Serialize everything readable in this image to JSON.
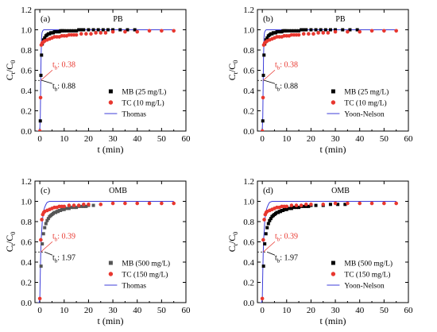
{
  "chart_data": [
    {
      "type": "scatter",
      "panel_label": "(a)",
      "title": "PB",
      "xlabel": "t (min)",
      "ylabel_main": "C",
      "ylabel_sub1": "t",
      "ylabel_mid": "/C",
      "ylabel_sub2": "0",
      "xlim": [
        -2,
        60
      ],
      "ylim": [
        0,
        1.2
      ],
      "xticks": [
        0,
        10,
        20,
        30,
        40,
        50,
        60
      ],
      "yticks": [
        0.0,
        0.2,
        0.4,
        0.6,
        0.8,
        1.0,
        1.2
      ],
      "series": [
        {
          "name": "MB (25 mg/L)",
          "marker": "square",
          "color": "#000000",
          "x": [
            0.2,
            0.45,
            0.7,
            1,
            1.5,
            2,
            2.5,
            3,
            3.5,
            4,
            4.5,
            5,
            5.5,
            6,
            6.5,
            7,
            7.5,
            8,
            8.5,
            9,
            9.5,
            10,
            11,
            12,
            13,
            14,
            15,
            16,
            17,
            18,
            20,
            22,
            24,
            26,
            28,
            30,
            33,
            36,
            39
          ],
          "y": [
            0.1,
            0.55,
            0.75,
            0.86,
            0.9,
            0.92,
            0.94,
            0.95,
            0.96,
            0.96,
            0.97,
            0.97,
            0.97,
            0.98,
            0.98,
            0.98,
            0.98,
            0.98,
            0.99,
            0.99,
            0.99,
            0.99,
            0.99,
            0.99,
            0.99,
            0.99,
            0.99,
            1.0,
            1.0,
            1.0,
            1.0,
            1.0,
            1.0,
            1.0,
            1.0,
            1.0,
            1.0,
            1.0,
            1.0
          ]
        },
        {
          "name": "TC (10 mg/L)",
          "marker": "circle",
          "color": "#e8372f",
          "x": [
            0,
            0.3,
            0.6,
            1,
            1.5,
            2,
            3,
            4,
            5,
            6,
            7,
            8,
            9,
            10,
            11,
            12,
            13,
            14,
            15,
            17,
            19,
            21,
            23,
            25,
            27,
            30,
            35,
            40,
            45,
            50,
            55
          ],
          "y": [
            0.0,
            0.33,
            0.85,
            0.87,
            0.88,
            0.89,
            0.9,
            0.91,
            0.92,
            0.93,
            0.93,
            0.93,
            0.94,
            0.94,
            0.94,
            0.95,
            0.95,
            0.95,
            0.95,
            0.96,
            0.96,
            0.96,
            0.97,
            0.97,
            0.97,
            0.98,
            0.98,
            0.98,
            0.99,
            0.99,
            0.99
          ]
        },
        {
          "name": "Thomas",
          "kind": "line",
          "color": "#3d3dd9",
          "x": [
            -1,
            -0.3,
            0,
            0.2,
            0.38,
            0.5,
            0.7,
            0.88,
            1.2,
            1.6,
            2.2,
            3,
            4,
            6,
            10,
            20,
            40,
            55
          ],
          "y": [
            0.0,
            0.0,
            0.02,
            0.15,
            0.5,
            0.72,
            0.92,
            0.97,
            0.99,
            1.0,
            1.0,
            1.0,
            1.0,
            1.0,
            1.0,
            1.0,
            1.0,
            1.0
          ]
        }
      ],
      "annotations": [
        {
          "label_main": "t",
          "label_sub": "b",
          "value": ": 0.38",
          "color": "#e8372f"
        },
        {
          "label_main": "t",
          "label_sub": "b",
          "value": ": 0.88",
          "color": "#000000"
        }
      ],
      "legend_position": "bottom-right",
      "grid": false
    },
    {
      "type": "scatter",
      "panel_label": "(b)",
      "title": "PB",
      "xlabel": "t (min)",
      "ylabel_main": "C",
      "ylabel_sub1": "t",
      "ylabel_mid": "/C",
      "ylabel_sub2": "0",
      "xlim": [
        -2,
        60
      ],
      "ylim": [
        0,
        1.2
      ],
      "xticks": [
        0,
        10,
        20,
        30,
        40,
        50,
        60
      ],
      "yticks": [
        0.0,
        0.2,
        0.4,
        0.6,
        0.8,
        1.0,
        1.2
      ],
      "series": [
        {
          "name": "MB (25 mg/L)",
          "marker": "square",
          "color": "#000000",
          "x": [
            0.2,
            0.45,
            0.7,
            1,
            1.5,
            2,
            2.5,
            3,
            3.5,
            4,
            4.5,
            5,
            5.5,
            6,
            6.5,
            7,
            7.5,
            8,
            8.5,
            9,
            9.5,
            10,
            11,
            12,
            13,
            14,
            15,
            16,
            17,
            18,
            20,
            22,
            24,
            26,
            28,
            30,
            33,
            36,
            39
          ],
          "y": [
            0.1,
            0.55,
            0.75,
            0.86,
            0.9,
            0.92,
            0.94,
            0.95,
            0.96,
            0.96,
            0.97,
            0.97,
            0.97,
            0.98,
            0.98,
            0.98,
            0.98,
            0.98,
            0.99,
            0.99,
            0.99,
            0.99,
            0.99,
            0.99,
            0.99,
            0.99,
            0.99,
            1.0,
            1.0,
            1.0,
            1.0,
            1.0,
            1.0,
            1.0,
            1.0,
            1.0,
            1.0,
            1.0,
            1.0
          ]
        },
        {
          "name": "TC (10 mg/L)",
          "marker": "circle",
          "color": "#e8372f",
          "x": [
            0,
            0.3,
            0.6,
            1,
            1.5,
            2,
            3,
            4,
            5,
            6,
            7,
            8,
            9,
            10,
            11,
            12,
            13,
            14,
            15,
            17,
            19,
            21,
            23,
            25,
            27,
            30,
            35,
            40,
            45,
            50,
            55
          ],
          "y": [
            0.0,
            0.33,
            0.85,
            0.87,
            0.88,
            0.89,
            0.9,
            0.91,
            0.92,
            0.93,
            0.93,
            0.93,
            0.94,
            0.94,
            0.94,
            0.95,
            0.95,
            0.95,
            0.95,
            0.96,
            0.96,
            0.96,
            0.97,
            0.97,
            0.97,
            0.98,
            0.98,
            0.98,
            0.99,
            0.99,
            0.99
          ]
        },
        {
          "name": "Yoon-Nelson",
          "kind": "line",
          "color": "#3d3dd9",
          "x": [
            -1,
            -0.3,
            0,
            0.2,
            0.38,
            0.5,
            0.7,
            0.88,
            1.2,
            1.6,
            2.2,
            3,
            4,
            6,
            10,
            20,
            40,
            55
          ],
          "y": [
            0.0,
            0.0,
            0.02,
            0.15,
            0.5,
            0.72,
            0.92,
            0.97,
            0.99,
            1.0,
            1.0,
            1.0,
            1.0,
            1.0,
            1.0,
            1.0,
            1.0,
            1.0
          ]
        }
      ],
      "annotations": [
        {
          "label_main": "t",
          "label_sub": "b",
          "value": ": 0.38",
          "color": "#e8372f"
        },
        {
          "label_main": "t",
          "label_sub": "b",
          "value": ": 0.88",
          "color": "#000000"
        }
      ],
      "legend_position": "bottom-right",
      "grid": false
    },
    {
      "type": "scatter",
      "panel_label": "(c)",
      "title": "OMB",
      "xlabel": "t (min)",
      "ylabel_main": "C",
      "ylabel_sub1": "t",
      "ylabel_mid": "/C",
      "ylabel_sub2": "0",
      "xlim": [
        -2,
        60
      ],
      "ylim": [
        0,
        1.2
      ],
      "xticks": [
        0,
        10,
        20,
        30,
        40,
        50,
        60
      ],
      "yticks": [
        0.0,
        0.2,
        0.4,
        0.6,
        0.8,
        1.0,
        1.2
      ],
      "series": [
        {
          "name": "MB (500 mg/L)",
          "marker": "square",
          "color": "#555555",
          "x": [
            0.5,
            1,
            1.5,
            2,
            2.5,
            3,
            3.5,
            4,
            4.5,
            5,
            5.5,
            6,
            6.5,
            7,
            7.5,
            8,
            8.5,
            9,
            9.5,
            10,
            11,
            12,
            13,
            14,
            15,
            16,
            17,
            18,
            19,
            20,
            22
          ],
          "y": [
            0.36,
            0.58,
            0.68,
            0.74,
            0.78,
            0.81,
            0.83,
            0.85,
            0.86,
            0.87,
            0.88,
            0.89,
            0.89,
            0.9,
            0.9,
            0.91,
            0.91,
            0.92,
            0.92,
            0.92,
            0.93,
            0.93,
            0.94,
            0.94,
            0.94,
            0.95,
            0.95,
            0.95,
            0.95,
            0.96,
            0.96
          ]
        },
        {
          "name": "TC (150 mg/L)",
          "marker": "circle",
          "color": "#e8372f",
          "x": [
            0,
            0.4,
            0.8,
            1.2,
            1.6,
            2,
            3,
            4,
            5,
            6,
            7,
            8,
            9,
            10,
            12,
            14,
            16,
            18,
            20,
            25,
            30,
            35,
            40,
            45,
            50,
            55
          ],
          "y": [
            0.04,
            0.62,
            0.82,
            0.87,
            0.89,
            0.9,
            0.91,
            0.92,
            0.93,
            0.94,
            0.94,
            0.95,
            0.95,
            0.95,
            0.96,
            0.96,
            0.96,
            0.97,
            0.97,
            0.97,
            0.98,
            0.98,
            0.98,
            0.98,
            0.98,
            0.98
          ]
        },
        {
          "name": "Thomas",
          "kind": "line",
          "color": "#3d3dd9",
          "x": [
            -1,
            -0.3,
            0,
            0.2,
            0.39,
            0.6,
            1,
            1.5,
            1.97,
            2.5,
            3,
            4,
            5,
            6,
            8,
            10,
            20,
            40,
            55
          ],
          "y": [
            0.0,
            0.0,
            0.04,
            0.3,
            0.5,
            0.64,
            0.8,
            0.9,
            0.94,
            0.97,
            0.99,
            1.0,
            1.0,
            1.0,
            1.0,
            1.0,
            1.0,
            1.0,
            1.0
          ]
        }
      ],
      "annotations": [
        {
          "label_main": "t",
          "label_sub": "b",
          "value": ": 0.39",
          "color": "#e8372f"
        },
        {
          "label_main": "t",
          "label_sub": "b",
          "value": ": 1.97",
          "color": "#000000"
        }
      ],
      "legend_position": "bottom-right",
      "grid": false
    },
    {
      "type": "scatter",
      "panel_label": "(d)",
      "title": "OMB",
      "xlabel": "t (min)",
      "ylabel_main": "C",
      "ylabel_sub1": "t",
      "ylabel_mid": "/C",
      "ylabel_sub2": "0",
      "xlim": [
        -2,
        60
      ],
      "ylim": [
        0,
        1.2
      ],
      "xticks": [
        0,
        10,
        20,
        30,
        40,
        50,
        60
      ],
      "yticks": [
        0.0,
        0.2,
        0.4,
        0.6,
        0.8,
        1.0,
        1.2
      ],
      "series": [
        {
          "name": "MB (500 mg/L)",
          "marker": "square",
          "color": "#000000",
          "x": [
            0.5,
            1,
            1.5,
            2,
            2.5,
            3,
            3.5,
            4,
            4.5,
            5,
            5.5,
            6,
            6.5,
            7,
            7.5,
            8,
            8.5,
            9,
            9.5,
            10,
            11,
            12,
            13,
            14,
            15,
            16,
            17,
            18,
            19,
            20,
            22,
            25,
            28,
            31,
            34
          ],
          "y": [
            0.36,
            0.58,
            0.68,
            0.74,
            0.78,
            0.81,
            0.83,
            0.85,
            0.86,
            0.87,
            0.88,
            0.89,
            0.89,
            0.9,
            0.9,
            0.91,
            0.91,
            0.92,
            0.92,
            0.92,
            0.93,
            0.93,
            0.94,
            0.94,
            0.94,
            0.95,
            0.95,
            0.95,
            0.95,
            0.96,
            0.96,
            0.96,
            0.97,
            0.97,
            0.97
          ]
        },
        {
          "name": "TC (150 mg/L)",
          "marker": "circle",
          "color": "#e8372f",
          "x": [
            0,
            0.4,
            0.8,
            1.2,
            1.6,
            2,
            3,
            4,
            5,
            6,
            7,
            8,
            9,
            10,
            12,
            14,
            16,
            18,
            20,
            25,
            30,
            35,
            40,
            45,
            50,
            55
          ],
          "y": [
            0.04,
            0.62,
            0.82,
            0.87,
            0.89,
            0.9,
            0.91,
            0.92,
            0.93,
            0.94,
            0.94,
            0.95,
            0.95,
            0.95,
            0.96,
            0.96,
            0.96,
            0.97,
            0.97,
            0.97,
            0.98,
            0.98,
            0.98,
            0.98,
            0.98,
            0.98
          ]
        },
        {
          "name": "Yoon-Nelson",
          "kind": "line",
          "color": "#3d3dd9",
          "x": [
            -1,
            -0.3,
            0,
            0.2,
            0.39,
            0.6,
            1,
            1.5,
            1.97,
            2.5,
            3,
            4,
            5,
            6,
            8,
            10,
            20,
            40,
            55
          ],
          "y": [
            0.0,
            0.0,
            0.04,
            0.3,
            0.5,
            0.64,
            0.8,
            0.9,
            0.94,
            0.97,
            0.99,
            1.0,
            1.0,
            1.0,
            1.0,
            1.0,
            1.0,
            1.0,
            1.0
          ]
        }
      ],
      "annotations": [
        {
          "label_main": "t",
          "label_sub": "b",
          "value": ": 0.39",
          "color": "#e8372f"
        },
        {
          "label_main": "t",
          "label_sub": "b",
          "value": ": 1.97",
          "color": "#000000"
        }
      ],
      "legend_position": "bottom-right",
      "grid": false
    }
  ]
}
